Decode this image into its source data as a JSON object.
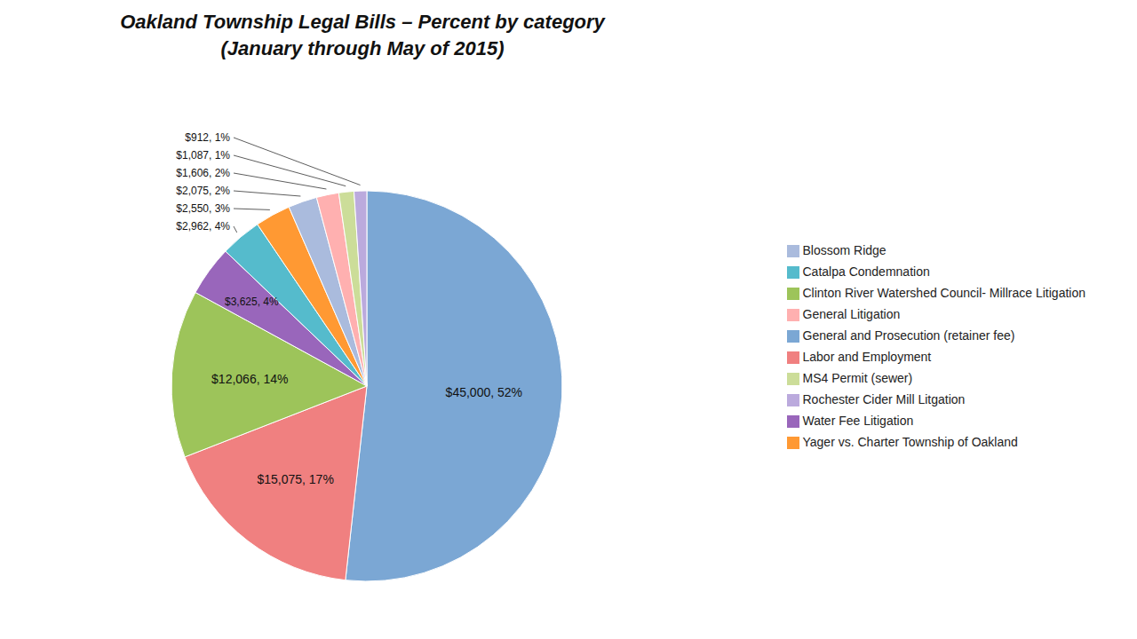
{
  "chart_data": {
    "type": "pie",
    "title": "Oakland Township Legal Bills – Percent by category",
    "subtitle": "(January through May of 2015)",
    "categories": [
      "General and Prosecution (retainer fee)",
      "Labor and Employment",
      "Clinton River Watershed Council- Millrace Litigation",
      "Water Fee Litigation",
      "Catalpa Condemnation",
      "Yager vs. Charter Township of Oakland",
      "Blossom Ridge",
      "General Litigation",
      "MS4 Permit (sewer)",
      "Rochester Cider Mill Litgation"
    ],
    "values": [
      45000,
      15075,
      12066,
      3625,
      2962,
      2550,
      2075,
      1606,
      1087,
      912
    ],
    "value_labels": [
      "$45,000, 52%",
      "$15,075, 17%",
      "$12,066, 14%",
      "$3,625, 4%",
      "$2,962, 4%",
      "$2,550, 3%",
      "$2,075, 2%",
      "$1,606, 2%",
      "$1,087, 1%",
      "$912, 1%"
    ],
    "colors": [
      "#7BA7D4",
      "#F08080",
      "#9DC45A",
      "#9966BB",
      "#55BBCC",
      "#FF9933",
      "#AABBDD",
      "#FFB0B0",
      "#CCDD99",
      "#BBAADD"
    ],
    "legend": "right"
  }
}
